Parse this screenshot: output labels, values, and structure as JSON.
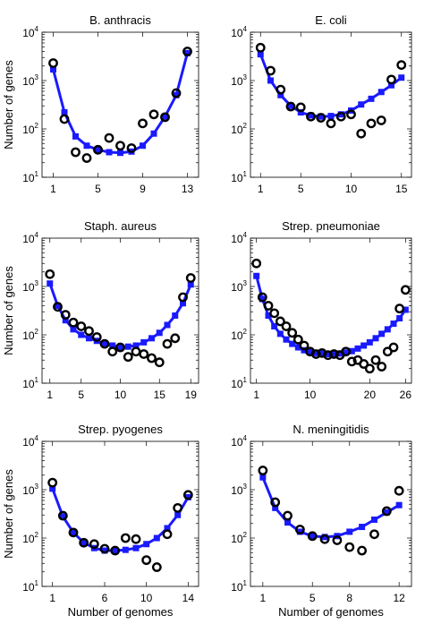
{
  "colors": {
    "model": "#1a1aff",
    "observed": "#000000",
    "frame": "#000000"
  },
  "figure": {
    "ylabel": "Number of genes",
    "xlabel": "Number of genomes"
  },
  "chart_data": [
    {
      "type": "line",
      "title": "B. anthracis",
      "xlabel": "",
      "ylabel": "Number of genes",
      "yscale": "log",
      "ylim": [
        10,
        10000
      ],
      "xlim": [
        0,
        14
      ],
      "xticks": [
        1,
        5,
        9,
        13
      ],
      "yticks": [
        {
          "base": "10",
          "exp": "1"
        },
        {
          "base": "10",
          "exp": "2"
        },
        {
          "base": "10",
          "exp": "3"
        },
        {
          "base": "10",
          "exp": "4"
        }
      ],
      "series": [
        {
          "kind": "model",
          "marker": "square",
          "x": [
            1,
            2,
            3,
            4,
            5,
            6,
            7,
            8,
            9,
            10,
            11,
            12,
            13
          ],
          "y": [
            1700,
            220,
            70,
            45,
            37,
            33,
            32,
            34,
            45,
            80,
            180,
            500,
            3700
          ]
        },
        {
          "kind": "observed",
          "marker": "circle",
          "x": [
            1,
            2,
            3,
            4,
            5,
            6,
            7,
            8,
            9,
            10,
            11,
            12,
            13
          ],
          "y": [
            2300,
            160,
            33,
            25,
            37,
            65,
            45,
            40,
            130,
            200,
            175,
            550,
            4000
          ]
        }
      ]
    },
    {
      "type": "line",
      "title": "E. coli",
      "xlabel": "",
      "ylabel": "",
      "yscale": "log",
      "ylim": [
        10,
        10000
      ],
      "xlim": [
        0,
        16
      ],
      "xticks": [
        1,
        5,
        10,
        15
      ],
      "yticks": [
        {
          "base": "10",
          "exp": "1"
        },
        {
          "base": "10",
          "exp": "2"
        },
        {
          "base": "10",
          "exp": "3"
        },
        {
          "base": "10",
          "exp": "4"
        }
      ],
      "series": [
        {
          "kind": "model",
          "marker": "square",
          "x": [
            1,
            2,
            3,
            4,
            5,
            6,
            7,
            8,
            9,
            10,
            11,
            12,
            13,
            14,
            15
          ],
          "y": [
            3500,
            1000,
            500,
            300,
            220,
            190,
            180,
            185,
            200,
            240,
            320,
            420,
            580,
            800,
            1150
          ]
        },
        {
          "kind": "observed",
          "marker": "circle",
          "x": [
            1,
            2,
            3,
            4,
            5,
            6,
            7,
            8,
            9,
            10,
            11,
            12,
            13,
            14,
            15
          ],
          "y": [
            4800,
            1600,
            650,
            290,
            280,
            180,
            170,
            130,
            180,
            200,
            80,
            130,
            150,
            1050,
            2100
          ]
        }
      ]
    },
    {
      "type": "line",
      "title": "Staph. aureus",
      "xlabel": "",
      "ylabel": "Number of genes",
      "yscale": "log",
      "ylim": [
        10,
        10000
      ],
      "xlim": [
        0,
        20
      ],
      "xticks": [
        1,
        5,
        10,
        15,
        19
      ],
      "yticks": [
        {
          "base": "10",
          "exp": "1"
        },
        {
          "base": "10",
          "exp": "2"
        },
        {
          "base": "10",
          "exp": "3"
        },
        {
          "base": "10",
          "exp": "4"
        }
      ],
      "series": [
        {
          "kind": "model",
          "marker": "square",
          "x": [
            1,
            2,
            3,
            4,
            5,
            6,
            7,
            8,
            9,
            10,
            11,
            12,
            13,
            14,
            15,
            16,
            17,
            18,
            19
          ],
          "y": [
            1150,
            400,
            200,
            130,
            100,
            85,
            75,
            65,
            60,
            55,
            57,
            60,
            70,
            85,
            110,
            160,
            250,
            450,
            1100
          ]
        },
        {
          "kind": "observed",
          "marker": "circle",
          "x": [
            1,
            2,
            3,
            4,
            5,
            6,
            7,
            8,
            9,
            10,
            11,
            12,
            13,
            14,
            15,
            16,
            17,
            18,
            19
          ],
          "y": [
            1800,
            380,
            260,
            180,
            150,
            120,
            90,
            65,
            45,
            55,
            35,
            45,
            40,
            33,
            27,
            65,
            85,
            600,
            1500
          ]
        }
      ]
    },
    {
      "type": "line",
      "title": "Strep. pneumoniae",
      "xlabel": "",
      "ylabel": "",
      "yscale": "log",
      "ylim": [
        10,
        10000
      ],
      "xlim": [
        0,
        27
      ],
      "xticks": [
        1,
        10,
        20,
        26
      ],
      "yticks": [
        {
          "base": "10",
          "exp": "1"
        },
        {
          "base": "10",
          "exp": "2"
        },
        {
          "base": "10",
          "exp": "3"
        },
        {
          "base": "10",
          "exp": "4"
        }
      ],
      "series": [
        {
          "kind": "model",
          "marker": "square",
          "x": [
            1,
            2,
            3,
            4,
            5,
            6,
            7,
            8,
            9,
            10,
            11,
            12,
            13,
            14,
            15,
            16,
            17,
            18,
            19,
            20,
            21,
            22,
            23,
            24,
            25,
            26
          ],
          "y": [
            1650,
            550,
            250,
            150,
            105,
            80,
            65,
            55,
            48,
            44,
            42,
            41,
            40,
            40,
            41,
            43,
            46,
            52,
            60,
            70,
            85,
            105,
            130,
            170,
            220,
            330
          ]
        },
        {
          "kind": "observed",
          "marker": "circle",
          "x": [
            1,
            2,
            3,
            4,
            5,
            6,
            7,
            8,
            9,
            10,
            11,
            12,
            13,
            14,
            15,
            16,
            17,
            18,
            19,
            20,
            21,
            22,
            23,
            24,
            25,
            26
          ],
          "y": [
            3000,
            600,
            400,
            280,
            190,
            150,
            110,
            80,
            60,
            45,
            40,
            42,
            38,
            40,
            38,
            45,
            28,
            30,
            25,
            20,
            30,
            22,
            45,
            55,
            350,
            850
          ]
        }
      ]
    },
    {
      "type": "line",
      "title": "Strep. pyogenes",
      "xlabel": "Number of genomes",
      "ylabel": "Number of genes",
      "yscale": "log",
      "ylim": [
        10,
        10000
      ],
      "xlim": [
        0,
        15
      ],
      "xticks": [
        1,
        6,
        10,
        14
      ],
      "yticks": [
        {
          "base": "10",
          "exp": "1"
        },
        {
          "base": "10",
          "exp": "2"
        },
        {
          "base": "10",
          "exp": "3"
        },
        {
          "base": "10",
          "exp": "4"
        }
      ],
      "series": [
        {
          "kind": "model",
          "marker": "square",
          "x": [
            1,
            2,
            3,
            4,
            5,
            6,
            7,
            8,
            9,
            10,
            11,
            12,
            13,
            14
          ],
          "y": [
            1050,
            280,
            130,
            80,
            62,
            55,
            55,
            57,
            62,
            75,
            100,
            160,
            300,
            700
          ]
        },
        {
          "kind": "observed",
          "marker": "circle",
          "x": [
            1,
            2,
            3,
            4,
            5,
            6,
            7,
            8,
            9,
            10,
            11,
            12,
            13,
            14
          ],
          "y": [
            1400,
            290,
            130,
            80,
            75,
            60,
            55,
            100,
            95,
            35,
            25,
            120,
            420,
            780
          ]
        }
      ]
    },
    {
      "type": "line",
      "title": "N. meningitidis",
      "xlabel": "Number of genomes",
      "ylabel": "",
      "yscale": "log",
      "ylim": [
        10,
        10000
      ],
      "xlim": [
        0,
        13
      ],
      "xticks": [
        1,
        5,
        8,
        12
      ],
      "yticks": [
        {
          "base": "10",
          "exp": "1"
        },
        {
          "base": "10",
          "exp": "2"
        },
        {
          "base": "10",
          "exp": "3"
        },
        {
          "base": "10",
          "exp": "4"
        }
      ],
      "series": [
        {
          "kind": "model",
          "marker": "square",
          "x": [
            1,
            2,
            3,
            4,
            5,
            6,
            7,
            8,
            9,
            10,
            11,
            12
          ],
          "y": [
            1800,
            420,
            210,
            135,
            110,
            105,
            110,
            135,
            170,
            240,
            340,
            480
          ]
        },
        {
          "kind": "observed",
          "marker": "circle",
          "x": [
            1,
            2,
            3,
            4,
            5,
            6,
            7,
            8,
            9,
            10,
            11,
            12
          ],
          "y": [
            2500,
            550,
            290,
            150,
            110,
            95,
            90,
            65,
            55,
            120,
            360,
            950
          ]
        }
      ]
    }
  ]
}
